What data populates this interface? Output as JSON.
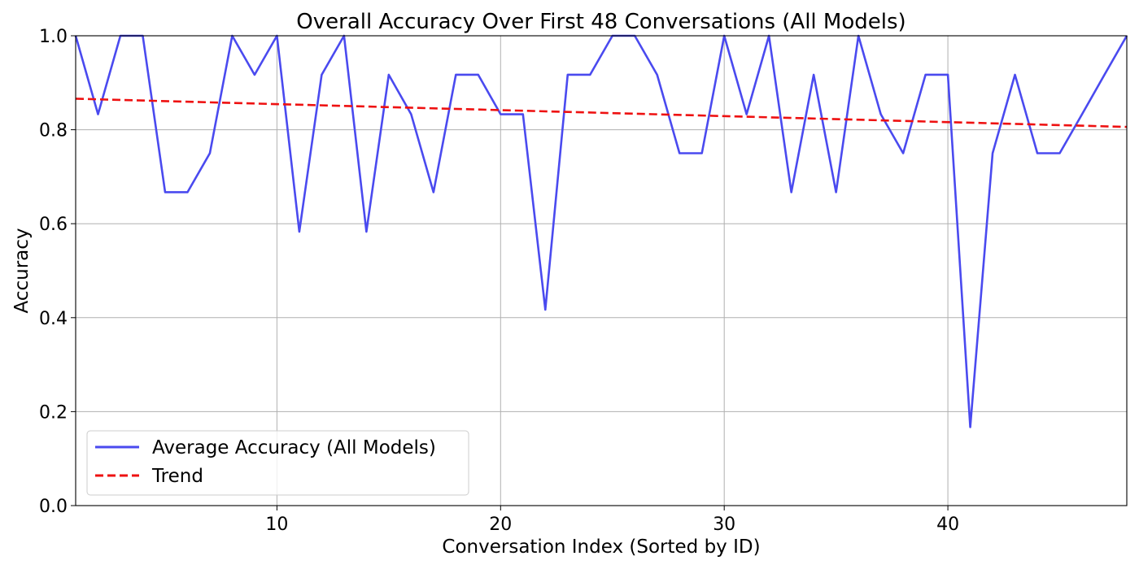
{
  "chart_data": {
    "type": "line",
    "title": "Overall Accuracy Over First 48 Conversations (All Models)",
    "xlabel": "Conversation Index (Sorted by ID)",
    "ylabel": "Accuracy",
    "xlim": [
      1,
      48
    ],
    "ylim": [
      0,
      1
    ],
    "xticks": [
      10,
      20,
      30,
      40
    ],
    "yticks": [
      0.0,
      0.2,
      0.4,
      0.6,
      0.8,
      1.0
    ],
    "xtick_labels": [
      "10",
      "20",
      "30",
      "40"
    ],
    "ytick_labels": [
      "0.0",
      "0.2",
      "0.4",
      "0.6",
      "0.8",
      "1.0"
    ],
    "grid": true,
    "legend_position": "lower-left",
    "x": [
      1,
      2,
      3,
      4,
      5,
      6,
      7,
      8,
      9,
      10,
      11,
      12,
      13,
      14,
      15,
      16,
      17,
      18,
      19,
      20,
      21,
      22,
      23,
      24,
      25,
      26,
      27,
      28,
      29,
      30,
      31,
      32,
      33,
      34,
      35,
      36,
      37,
      38,
      39,
      40,
      41,
      42,
      43,
      44,
      45,
      46,
      47,
      48
    ],
    "series": [
      {
        "name": "Average Accuracy (All Models)",
        "style": "solid",
        "color": "#4a4aef",
        "values": [
          1.0,
          0.833,
          1.0,
          1.0,
          0.667,
          0.667,
          0.75,
          1.0,
          0.917,
          1.0,
          0.583,
          0.917,
          1.0,
          0.583,
          0.917,
          0.833,
          0.667,
          0.917,
          0.917,
          0.833,
          0.833,
          0.417,
          0.917,
          0.917,
          1.0,
          1.0,
          0.917,
          0.75,
          0.75,
          1.0,
          0.833,
          1.0,
          0.667,
          0.917,
          0.667,
          1.0,
          0.833,
          0.75,
          0.917,
          0.917,
          0.167,
          0.75,
          0.917,
          0.75,
          0.75,
          0.833,
          0.917,
          1.0
        ]
      },
      {
        "name": "Trend",
        "style": "dashed",
        "color": "#ee1111",
        "endpoints": [
          [
            1,
            0.866
          ],
          [
            48,
            0.806
          ]
        ]
      }
    ]
  }
}
